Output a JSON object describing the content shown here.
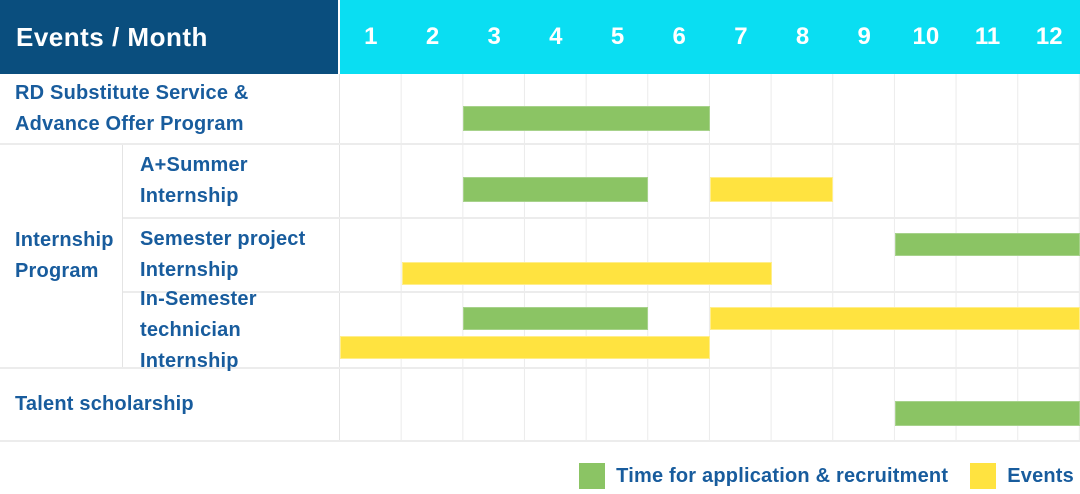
{
  "header": {
    "title": "Events / Month",
    "months": [
      "1",
      "2",
      "3",
      "4",
      "5",
      "6",
      "7",
      "8",
      "9",
      "10",
      "11",
      "12"
    ]
  },
  "colors": {
    "header_bg": "#0A4E7E",
    "month_bg": "#0ADEF2",
    "label_text": "#185C9D",
    "recruitment": "#8BC464",
    "recruitment_border": "#A7D28B",
    "events": "#FFE340",
    "events_border": "#FFEE8C",
    "grid_line": "#EBEBEB",
    "grid_strong": "#E4E4E4",
    "row_line": "#ECECEC"
  },
  "body": {
    "rows": [
      {
        "type": "simple",
        "label_lines": [
          "RD Substitute Service &",
          "Advance Offer Program"
        ],
        "bars": [
          {
            "series": "recruitment",
            "start_month": 3,
            "end_month": 6,
            "line": 0
          }
        ]
      },
      {
        "type": "group",
        "label_lines": [
          "Internship",
          "Program"
        ],
        "sub_rows": [
          {
            "label_lines": [
              "A+Summer",
              "Internship"
            ],
            "bars": [
              {
                "series": "recruitment",
                "start_month": 3,
                "end_month": 5,
                "line": 0
              },
              {
                "series": "events",
                "start_month": 7,
                "end_month": 8,
                "line": 0
              }
            ]
          },
          {
            "label_lines": [
              "Semester project",
              "Internship"
            ],
            "bars": [
              {
                "series": "recruitment",
                "start_month": 10,
                "end_month": 12,
                "line": 0
              },
              {
                "series": "events",
                "start_month": 2,
                "end_month": 7,
                "line": 1
              }
            ]
          },
          {
            "label_lines": [
              "In-Semester",
              "technician Internship"
            ],
            "bars": [
              {
                "series": "recruitment",
                "start_month": 3,
                "end_month": 5,
                "line": 0
              },
              {
                "series": "events",
                "start_month": 7,
                "end_month": 12,
                "line": 0
              },
              {
                "series": "events",
                "start_month": 1,
                "end_month": 6,
                "line": 1
              }
            ]
          }
        ]
      },
      {
        "type": "simple",
        "label_lines": [
          "Talent scholarship"
        ],
        "bars": [
          {
            "series": "recruitment",
            "start_month": 10,
            "end_month": 12,
            "line": 0
          }
        ]
      }
    ]
  },
  "legend": {
    "items": [
      {
        "series": "recruitment",
        "label": "Time for application & recruitment"
      },
      {
        "series": "events",
        "label": "Events"
      }
    ],
    "position": "bottom-right"
  },
  "chart_data": {
    "type": "bar",
    "subtype": "gantt",
    "title": "Events / Month",
    "x_axis": {
      "label": "Month",
      "ticks": [
        1,
        2,
        3,
        4,
        5,
        6,
        7,
        8,
        9,
        10,
        11,
        12
      ],
      "range": [
        1,
        12
      ],
      "grid": true
    },
    "series_legend": [
      {
        "name": "Time for application & recruitment",
        "color": "#8BC464"
      },
      {
        "name": "Events",
        "color": "#FFE340"
      }
    ],
    "rows": [
      {
        "group": null,
        "label": "RD Substitute Service & Advance Offer Program",
        "bars": [
          {
            "series": "Time for application & recruitment",
            "start_month": 3,
            "end_month": 6
          }
        ]
      },
      {
        "group": "Internship Program",
        "label": "A+Summer Internship",
        "bars": [
          {
            "series": "Time for application & recruitment",
            "start_month": 3,
            "end_month": 5
          },
          {
            "series": "Events",
            "start_month": 7,
            "end_month": 8
          }
        ]
      },
      {
        "group": "Internship Program",
        "label": "Semester project Internship",
        "bars": [
          {
            "series": "Time for application & recruitment",
            "start_month": 10,
            "end_month": 12
          },
          {
            "series": "Events",
            "start_month": 2,
            "end_month": 7
          }
        ]
      },
      {
        "group": "Internship Program",
        "label": "In-Semester technician Internship",
        "bars": [
          {
            "series": "Time for application & recruitment",
            "start_month": 3,
            "end_month": 5
          },
          {
            "series": "Events",
            "start_month": 7,
            "end_month": 12
          },
          {
            "series": "Events",
            "start_month": 1,
            "end_month": 6
          }
        ]
      },
      {
        "group": null,
        "label": "Talent scholarship",
        "bars": [
          {
            "series": "Time for application & recruitment",
            "start_month": 10,
            "end_month": 12
          }
        ]
      }
    ],
    "legend_position": "bottom-right",
    "note": "end_month is inclusive; bars span from start of start_month column to end of end_month column"
  }
}
